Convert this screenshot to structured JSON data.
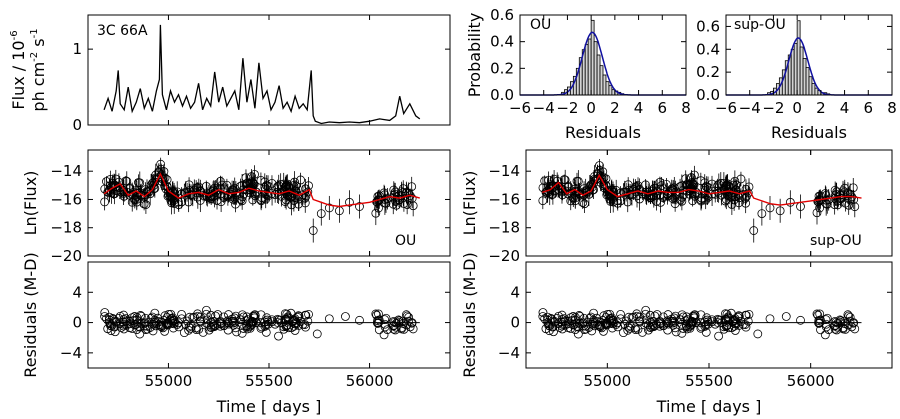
{
  "chart_data": [
    {
      "id": "lc",
      "type": "line",
      "annotation": "3C 66A",
      "ylabel_line1": "Flux / 10",
      "ylabel_sup": "-6",
      "ylabel_line2": "ph cm",
      "ylabel_sup2": "-2",
      "ylabel_s": " s",
      "ylabel_sup3": "-1",
      "xlim": [
        54600,
        56400
      ],
      "ylim": [
        0,
        1.45
      ],
      "yticks": [
        0,
        1
      ],
      "xticks": [
        55000,
        55500,
        56000
      ],
      "xticklabels_visible": false,
      "series": [
        {
          "name": "flux",
          "x": [
            54680,
            54700,
            54720,
            54740,
            54750,
            54760,
            54780,
            54800,
            54820,
            54840,
            54860,
            54880,
            54900,
            54920,
            54940,
            54955,
            54960,
            54970,
            54990,
            55010,
            55030,
            55050,
            55070,
            55090,
            55110,
            55130,
            55150,
            55170,
            55190,
            55210,
            55230,
            55250,
            55270,
            55290,
            55310,
            55330,
            55350,
            55370,
            55390,
            55410,
            55430,
            55450,
            55470,
            55490,
            55510,
            55530,
            55550,
            55570,
            55590,
            55610,
            55630,
            55650,
            55670,
            55690,
            55710,
            55720,
            55730,
            55760,
            55800,
            55850,
            55900,
            55950,
            56000,
            56050,
            56100,
            56130,
            56150,
            56170,
            56200,
            56230,
            56250
          ],
          "y": [
            0.2,
            0.35,
            0.18,
            0.45,
            0.72,
            0.28,
            0.2,
            0.5,
            0.18,
            0.3,
            0.48,
            0.22,
            0.35,
            0.18,
            0.45,
            0.6,
            1.32,
            0.4,
            0.2,
            0.45,
            0.3,
            0.4,
            0.25,
            0.38,
            0.22,
            0.3,
            0.55,
            0.2,
            0.35,
            0.25,
            0.7,
            0.3,
            0.5,
            0.25,
            0.35,
            0.45,
            0.2,
            0.88,
            0.3,
            0.6,
            0.22,
            0.82,
            0.35,
            0.45,
            0.2,
            0.3,
            0.52,
            0.22,
            0.3,
            0.18,
            0.38,
            0.22,
            0.28,
            0.2,
            0.72,
            0.12,
            0.05,
            0.02,
            0.04,
            0.03,
            0.04,
            0.03,
            0.05,
            0.08,
            0.06,
            0.12,
            0.38,
            0.15,
            0.28,
            0.12,
            0.08
          ]
        }
      ]
    },
    {
      "id": "hist_ou",
      "type": "bar",
      "annotation": "OU",
      "ylabel": "Probability",
      "xlabel": "Residuals",
      "xlim": [
        -6,
        8
      ],
      "ylim": [
        0,
        0.6
      ],
      "xticks": [
        -6,
        -4,
        -2,
        0,
        2,
        4,
        6,
        8
      ],
      "xticklabels": [
        "−6",
        "−4",
        "−2",
        "0",
        "2",
        "4",
        "6",
        "8"
      ],
      "yticks": [
        0,
        0.2,
        0.4,
        0.6
      ],
      "yticklabels": [
        "0.0",
        "0.2",
        "0.4",
        "0.6"
      ],
      "bin_width": 0.25,
      "bin_left": [
        -2.5,
        -2.25,
        -2,
        -1.75,
        -1.5,
        -1.25,
        -1,
        -0.75,
        -0.5,
        -0.25,
        0,
        0.25,
        0.5,
        0.75,
        1,
        1.25,
        1.5,
        1.75,
        2,
        2.25,
        2.5
      ],
      "values": [
        0.02,
        0.04,
        0.06,
        0.1,
        0.14,
        0.2,
        0.28,
        0.34,
        0.38,
        0.42,
        0.56,
        0.4,
        0.3,
        0.22,
        0.15,
        0.1,
        0.07,
        0.04,
        0.03,
        0.02,
        0.01
      ],
      "curve": {
        "mean": 0.1,
        "sigma": 0.85
      }
    },
    {
      "id": "hist_sup",
      "type": "bar",
      "annotation": "sup-OU",
      "ylabel": "",
      "xlabel": "Residuals",
      "xlim": [
        -6,
        8
      ],
      "ylim": [
        0,
        0.7
      ],
      "xticks": [
        -6,
        -4,
        -2,
        0,
        2,
        4,
        6,
        8
      ],
      "xticklabels": [
        "−6",
        "−4",
        "−2",
        "0",
        "2",
        "4",
        "6",
        "8"
      ],
      "yticks": [
        0,
        0.2,
        0.4,
        0.6
      ],
      "yticklabels": [
        "0.0",
        "0.2",
        "0.4",
        "0.6"
      ],
      "bin_width": 0.25,
      "bin_left": [
        -2.5,
        -2.25,
        -2,
        -1.75,
        -1.5,
        -1.25,
        -1,
        -0.75,
        -0.5,
        -0.25,
        0,
        0.25,
        0.5,
        0.75,
        1,
        1.25,
        1.5,
        1.75,
        2,
        2.25,
        2.5
      ],
      "values": [
        0.02,
        0.03,
        0.06,
        0.1,
        0.15,
        0.22,
        0.3,
        0.35,
        0.4,
        0.45,
        0.65,
        0.42,
        0.32,
        0.24,
        0.16,
        0.1,
        0.06,
        0.04,
        0.02,
        0.02,
        0.01
      ],
      "curve": {
        "mean": 0.1,
        "sigma": 0.8
      }
    },
    {
      "id": "lnflux_ou",
      "type": "scatter",
      "annotation": "OU",
      "ylabel": "Ln(Flux)",
      "xlim": [
        54600,
        56400
      ],
      "ylim": [
        -20,
        -12.5
      ],
      "yticks": [
        -20,
        -18,
        -16,
        -14
      ],
      "yticklabels": [
        "−20",
        "−18",
        "−16",
        "−14"
      ],
      "xticks": [
        55000,
        55500,
        56000
      ],
      "xticklabels_visible": false,
      "model_x": [
        54680,
        54720,
        54760,
        54800,
        54840,
        54880,
        54920,
        54960,
        55000,
        55050,
        55100,
        55150,
        55200,
        55250,
        55300,
        55350,
        55400,
        55450,
        55500,
        55550,
        55600,
        55650,
        55700,
        55720,
        55760,
        55800,
        55850,
        55900,
        55950,
        56000,
        56050,
        56100,
        56150,
        56200,
        56250
      ],
      "model_y": [
        -15.6,
        -15.2,
        -14.9,
        -15.7,
        -15.4,
        -15.8,
        -15.3,
        -14.2,
        -15.4,
        -15.9,
        -15.6,
        -15.5,
        -15.7,
        -15.3,
        -15.6,
        -15.5,
        -15.2,
        -15.4,
        -15.5,
        -15.6,
        -15.4,
        -15.7,
        -15.3,
        -16.0,
        -16.2,
        -16.4,
        -16.5,
        -16.4,
        -16.3,
        -16.2,
        -16.0,
        -15.8,
        -15.9,
        -15.7,
        -15.9
      ]
    },
    {
      "id": "lnflux_sup",
      "type": "scatter",
      "annotation": "sup-OU",
      "ylabel": "",
      "xlim": [
        54600,
        56400
      ],
      "ylim": [
        -20,
        -12.5
      ],
      "yticks": [
        -20,
        -18,
        -16,
        -14
      ],
      "yticklabels": [
        "−20",
        "−18",
        "−16",
        "−14"
      ],
      "xticks": [
        55000,
        55500,
        56000
      ],
      "xticklabels_visible": false,
      "model_x": [
        54680,
        54720,
        54760,
        54800,
        54840,
        54880,
        54920,
        54960,
        55000,
        55050,
        55100,
        55150,
        55200,
        55250,
        55300,
        55350,
        55400,
        55450,
        55500,
        55550,
        55600,
        55650,
        55700,
        55720,
        55760,
        55800,
        55850,
        55900,
        55950,
        56000,
        56050,
        56100,
        56150,
        56200,
        56250
      ],
      "model_y": [
        -15.5,
        -15.3,
        -14.8,
        -15.6,
        -15.3,
        -15.7,
        -15.4,
        -14.3,
        -15.3,
        -15.8,
        -15.6,
        -15.4,
        -15.6,
        -15.4,
        -15.5,
        -15.5,
        -15.3,
        -15.4,
        -15.6,
        -15.5,
        -15.4,
        -15.6,
        -15.4,
        -15.9,
        -16.1,
        -16.3,
        -16.4,
        -16.3,
        -16.2,
        -16.1,
        -16.0,
        -15.9,
        -15.8,
        -15.8,
        -15.9
      ]
    },
    {
      "id": "resid_ou",
      "type": "scatter",
      "ylabel": "Residuals (M-D)",
      "xlabel": "Time [ days ]",
      "xlim": [
        54600,
        56400
      ],
      "ylim": [
        -6,
        8
      ],
      "yticks": [
        -4,
        0,
        4
      ],
      "yticklabels": [
        "−4",
        "0",
        "4"
      ],
      "xticks": [
        55000,
        55500,
        56000
      ],
      "xticklabels": [
        "55000",
        "55500",
        "56000"
      ]
    },
    {
      "id": "resid_sup",
      "type": "scatter",
      "ylabel": "Residuals (M-D)",
      "xlabel": "Time [ days ]",
      "xlim": [
        54600,
        56400
      ],
      "ylim": [
        -6,
        8
      ],
      "yticks": [
        -4,
        0,
        4
      ],
      "yticklabels": [
        "−4",
        "0",
        "4"
      ],
      "xticks": [
        55000,
        55500,
        56000
      ],
      "xticklabels": [
        "55000",
        "55500",
        "56000"
      ]
    }
  ],
  "observations": {
    "segments": [
      [
        54680,
        55700,
        260
      ],
      [
        56030,
        56250,
        40
      ]
    ],
    "gap_points": [
      [
        55720,
        -18.2
      ],
      [
        55760,
        -17.0
      ],
      [
        55800,
        -16.6
      ],
      [
        55850,
        -16.8
      ],
      [
        55900,
        -16.2
      ],
      [
        55950,
        -16.5
      ]
    ],
    "resid_gap_points": [
      [
        55740,
        -1.5
      ],
      [
        55800,
        0.5
      ],
      [
        55880,
        0.8
      ],
      [
        55950,
        0.3
      ]
    ]
  },
  "colors": {
    "model": "#e00000",
    "curve": "#1010a0",
    "hist_fill": "#d3d3d3"
  }
}
